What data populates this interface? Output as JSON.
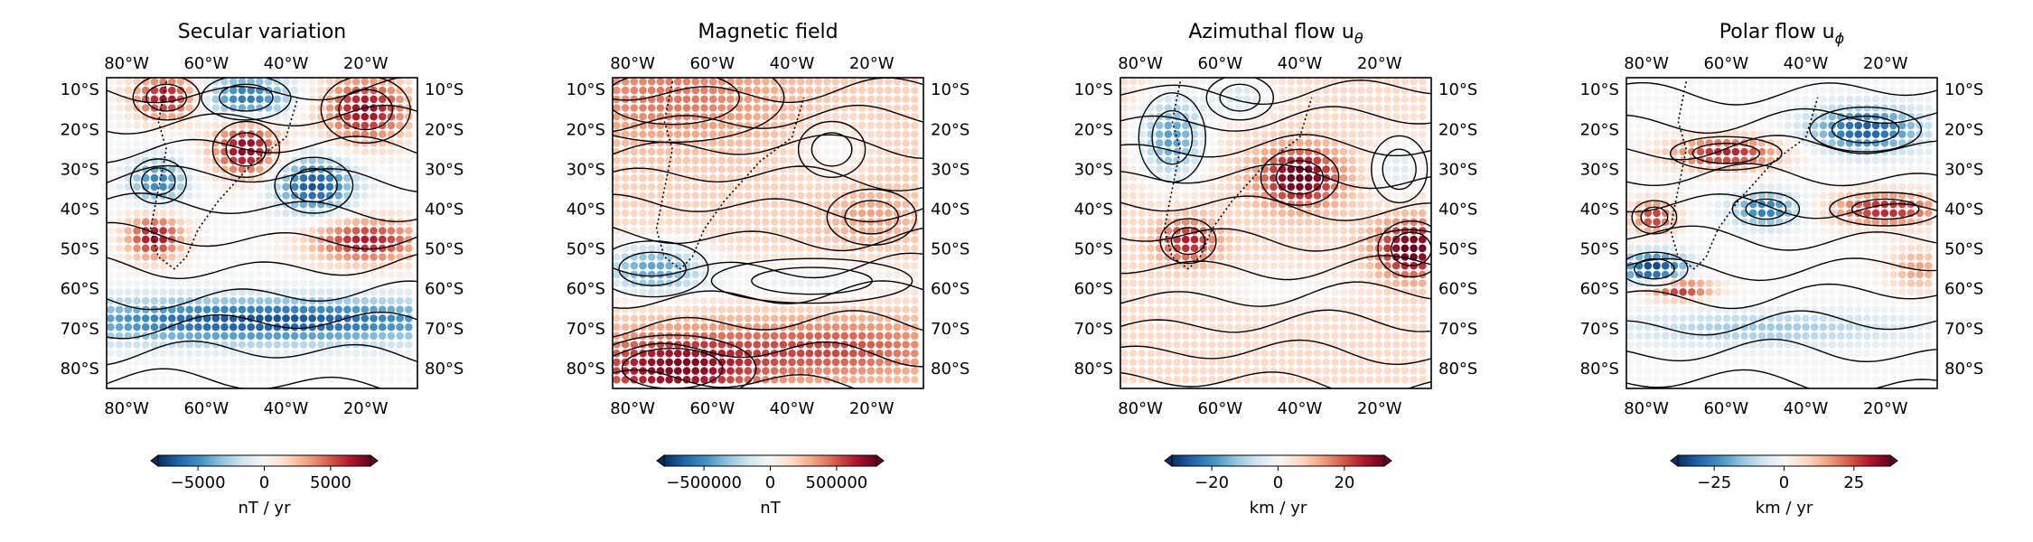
{
  "chart_data": [
    {
      "type": "heatmap",
      "title": "Secular variation",
      "x_ticks": [
        "80°W",
        "60°W",
        "40°W",
        "20°W"
      ],
      "x_tick_values": [
        -80,
        -60,
        -40,
        -20
      ],
      "y_ticks": [
        "10°S",
        "20°S",
        "30°S",
        "40°S",
        "50°S",
        "60°S",
        "70°S",
        "80°S"
      ],
      "y_tick_values": [
        -10,
        -20,
        -30,
        -40,
        -50,
        -60,
        -70,
        -80
      ],
      "xlim": [
        -85,
        -7
      ],
      "ylim": [
        -85,
        -7
      ],
      "colorbar": {
        "label": "nT / yr",
        "ticks": [
          "−5000",
          "0",
          "5000"
        ],
        "tick_values": [
          -5000,
          0,
          5000
        ],
        "range": [
          -8000,
          8000
        ],
        "colormap": "RdBu_r",
        "extend": "both"
      },
      "field": {
        "description_units": "nT / yr",
        "blobs": [
          {
            "lon": -70,
            "lat": -12,
            "amp": 7000,
            "sx": 6,
            "sy": 4
          },
          {
            "lon": -50,
            "lat": -12,
            "amp": -6000,
            "sx": 8,
            "sy": 4
          },
          {
            "lon": -20,
            "lat": -15,
            "amp": 7000,
            "sx": 8,
            "sy": 6
          },
          {
            "lon": -50,
            "lat": -25,
            "amp": 7500,
            "sx": 6,
            "sy": 5
          },
          {
            "lon": -72,
            "lat": -33,
            "amp": -5500,
            "sx": 5,
            "sy": 4
          },
          {
            "lon": -33,
            "lat": -34,
            "amp": -7000,
            "sx": 7,
            "sy": 5
          },
          {
            "lon": -73,
            "lat": -47,
            "amp": 7000,
            "sx": 5,
            "sy": 4
          },
          {
            "lon": -20,
            "lat": -48,
            "amp": 6500,
            "sx": 10,
            "sy": 4
          },
          {
            "lon": -45,
            "lat": -68,
            "amp": -7000,
            "sx": 40,
            "sy": 4
          }
        ]
      }
    },
    {
      "type": "heatmap",
      "title": "Magnetic field",
      "x_ticks": [
        "80°W",
        "60°W",
        "40°W",
        "20°W"
      ],
      "x_tick_values": [
        -80,
        -60,
        -40,
        -20
      ],
      "y_ticks": [
        "10°S",
        "20°S",
        "30°S",
        "40°S",
        "50°S",
        "60°S",
        "70°S",
        "80°S"
      ],
      "y_tick_values": [
        -10,
        -20,
        -30,
        -40,
        -50,
        -60,
        -70,
        -80
      ],
      "xlim": [
        -85,
        -7
      ],
      "ylim": [
        -85,
        -7
      ],
      "colorbar": {
        "label": "nT",
        "ticks": [
          "−500000",
          "0",
          "500000"
        ],
        "tick_values": [
          -500000,
          0,
          500000
        ],
        "range": [
          -800000,
          800000
        ],
        "colormap": "RdBu_r",
        "extend": "both"
      },
      "field": {
        "description_units": "nT",
        "base": 180000,
        "blobs": [
          {
            "lon": -70,
            "lat": -12,
            "amp": 250000,
            "sx": 20,
            "sy": 8
          },
          {
            "lon": -30,
            "lat": -25,
            "amp": -200000,
            "sx": 6,
            "sy": 5
          },
          {
            "lon": -20,
            "lat": -42,
            "amp": 150000,
            "sx": 8,
            "sy": 5
          },
          {
            "lon": -75,
            "lat": -55,
            "amp": -600000,
            "sx": 10,
            "sy": 5
          },
          {
            "lon": -35,
            "lat": -58,
            "amp": -250000,
            "sx": 18,
            "sy": 4
          },
          {
            "lon": -70,
            "lat": -80,
            "amp": 550000,
            "sx": 15,
            "sy": 6
          },
          {
            "lon": -30,
            "lat": -75,
            "amp": 350000,
            "sx": 20,
            "sy": 5
          }
        ]
      }
    },
    {
      "type": "heatmap",
      "title": "Azimuthal flow u",
      "title_subscript": "θ",
      "x_ticks": [
        "80°W",
        "60°W",
        "40°W",
        "20°W"
      ],
      "x_tick_values": [
        -80,
        -60,
        -40,
        -20
      ],
      "y_ticks": [
        "10°S",
        "20°S",
        "30°S",
        "40°S",
        "50°S",
        "60°S",
        "70°S",
        "80°S"
      ],
      "y_tick_values": [
        -10,
        -20,
        -30,
        -40,
        -50,
        -60,
        -70,
        -80
      ],
      "xlim": [
        -85,
        -7
      ],
      "ylim": [
        -85,
        -7
      ],
      "colorbar": {
        "label": "km / yr",
        "ticks": [
          "−20",
          "0",
          "20"
        ],
        "tick_values": [
          -20,
          0,
          20
        ],
        "range": [
          -32,
          32
        ],
        "colormap": "RdBu_r",
        "extend": "both"
      },
      "field": {
        "description_units": "km / yr",
        "base": 6,
        "blobs": [
          {
            "lon": -72,
            "lat": -22,
            "amp": -24,
            "sx": 6,
            "sy": 8
          },
          {
            "lon": -55,
            "lat": -12,
            "amp": -12,
            "sx": 6,
            "sy": 4
          },
          {
            "lon": -40,
            "lat": -32,
            "amp": 28,
            "sx": 7,
            "sy": 5
          },
          {
            "lon": -15,
            "lat": -30,
            "amp": -10,
            "sx": 5,
            "sy": 6
          },
          {
            "lon": -68,
            "lat": -48,
            "amp": 20,
            "sx": 5,
            "sy": 4
          },
          {
            "lon": -12,
            "lat": -50,
            "amp": 28,
            "sx": 6,
            "sy": 5
          },
          {
            "lon": -45,
            "lat": -60,
            "amp": -6,
            "sx": 15,
            "sy": 4
          }
        ]
      }
    },
    {
      "type": "heatmap",
      "title": "Polar flow u",
      "title_subscript": "ϕ",
      "x_ticks": [
        "80°W",
        "60°W",
        "40°W",
        "20°W"
      ],
      "x_tick_values": [
        -80,
        -60,
        -40,
        -20
      ],
      "y_ticks": [
        "10°S",
        "20°S",
        "30°S",
        "40°S",
        "50°S",
        "60°S",
        "70°S",
        "80°S"
      ],
      "y_tick_values": [
        -10,
        -20,
        -30,
        -40,
        -50,
        -60,
        -70,
        -80
      ],
      "xlim": [
        -85,
        -7
      ],
      "ylim": [
        -85,
        -7
      ],
      "colorbar": {
        "label": "km / yr",
        "ticks": [
          "−25",
          "0",
          "25"
        ],
        "tick_values": [
          -25,
          0,
          25
        ],
        "range": [
          -38,
          38
        ],
        "colormap": "RdBu_r",
        "extend": "both"
      },
      "field": {
        "description_units": "km / yr",
        "blobs": [
          {
            "lon": -60,
            "lat": -26,
            "amp": 30,
            "sx": 10,
            "sy": 3
          },
          {
            "lon": -25,
            "lat": -20,
            "amp": -32,
            "sx": 10,
            "sy": 4
          },
          {
            "lon": -50,
            "lat": -40,
            "amp": -28,
            "sx": 6,
            "sy": 3
          },
          {
            "lon": -20,
            "lat": -40,
            "amp": 30,
            "sx": 10,
            "sy": 3
          },
          {
            "lon": -78,
            "lat": -42,
            "amp": 28,
            "sx": 4,
            "sy": 3
          },
          {
            "lon": -78,
            "lat": -55,
            "amp": -36,
            "sx": 6,
            "sy": 3
          },
          {
            "lon": -72,
            "lat": -60,
            "amp": 32,
            "sx": 6,
            "sy": 2
          },
          {
            "lon": -12,
            "lat": -55,
            "amp": 16,
            "sx": 5,
            "sy": 4
          },
          {
            "lon": -50,
            "lat": -70,
            "amp": -14,
            "sx": 25,
            "sy": 3
          }
        ]
      }
    }
  ]
}
